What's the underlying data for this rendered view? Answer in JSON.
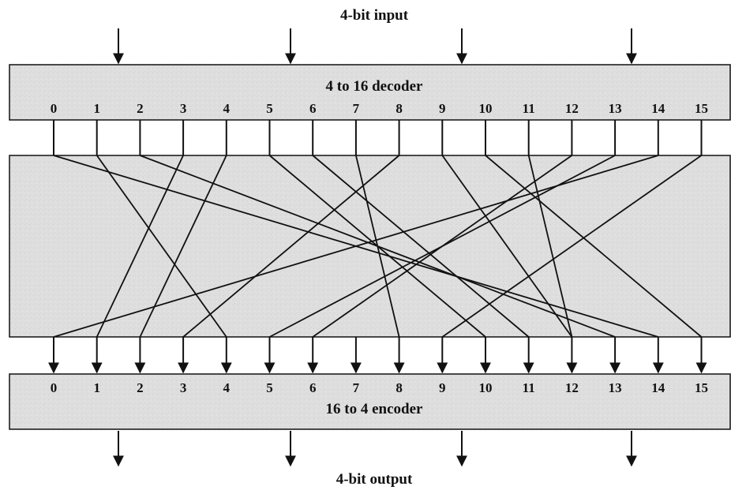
{
  "diagram": {
    "input_label": "4-bit input",
    "output_label": "4-bit output",
    "decoder_label": "4 to 16 decoder",
    "encoder_label": "16 to 4 encoder",
    "decoder_outputs": [
      "0",
      "1",
      "2",
      "3",
      "4",
      "5",
      "6",
      "7",
      "8",
      "9",
      "10",
      "11",
      "12",
      "13",
      "14",
      "15"
    ],
    "encoder_inputs": [
      "0",
      "1",
      "2",
      "3",
      "4",
      "5",
      "6",
      "7",
      "8",
      "9",
      "10",
      "11",
      "12",
      "13",
      "14",
      "15"
    ],
    "wiring": [
      {
        "from": "0",
        "to": "14"
      },
      {
        "from": "1",
        "to": "4"
      },
      {
        "from": "2",
        "to": "13"
      },
      {
        "from": "3",
        "to": "1"
      },
      {
        "from": "4",
        "to": "2"
      },
      {
        "from": "5",
        "to": "10"
      },
      {
        "from": "6",
        "to": "11"
      },
      {
        "from": "7",
        "to": "8"
      },
      {
        "from": "8",
        "to": "3"
      },
      {
        "from": "9",
        "to": "12"
      },
      {
        "from": "10",
        "to": "15"
      },
      {
        "from": "11",
        "to": "12"
      },
      {
        "from": "12",
        "to": "6"
      },
      {
        "from": "13",
        "to": "5"
      },
      {
        "from": "14",
        "to": "0"
      },
      {
        "from": "15",
        "to": "9"
      }
    ],
    "colors": {
      "box_fill": "#dedede",
      "line": "#111111",
      "text": "#111111"
    }
  }
}
